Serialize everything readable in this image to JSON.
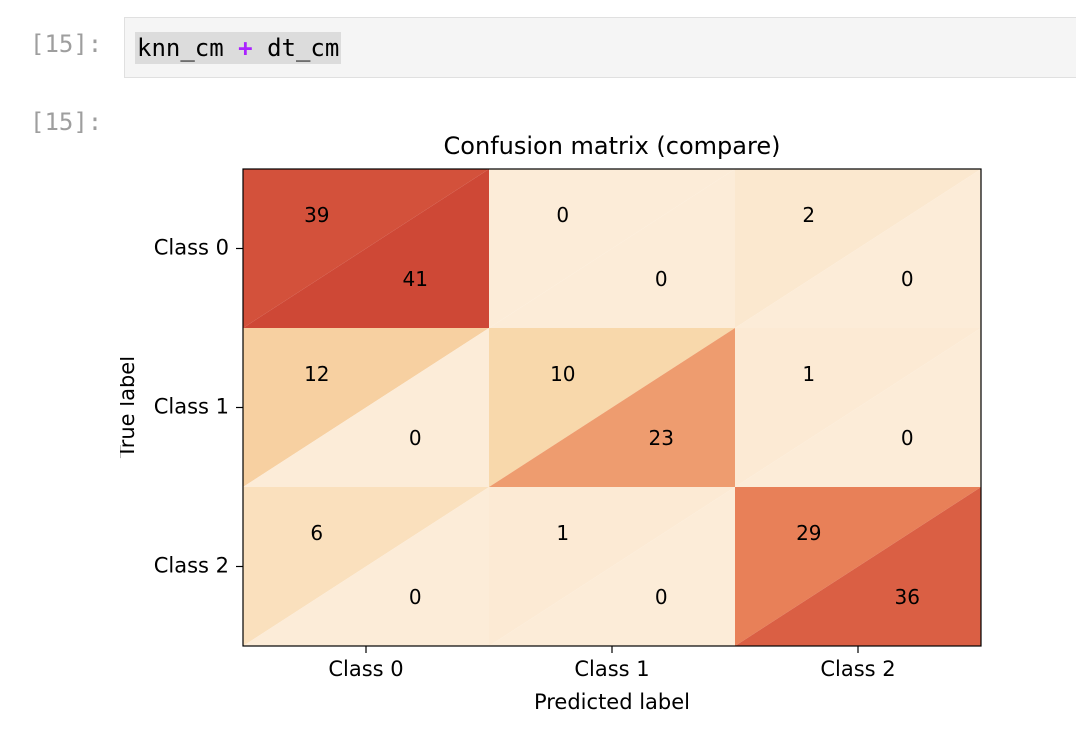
{
  "cell": {
    "in_prompt": "[15]:",
    "out_prompt": "[15]:",
    "code": {
      "lhs": "knn_cm",
      "op": "+",
      "rhs": "dt_cm"
    }
  },
  "chart_data": {
    "type": "heatmap",
    "title": "Confusion matrix (compare)",
    "xlabel": "Predicted label",
    "ylabel": "True label",
    "x_categories": [
      "Class 0",
      "Class 1",
      "Class 2"
    ],
    "y_categories": [
      "Class 0",
      "Class 1",
      "Class 2"
    ],
    "upper_values": [
      [
        39,
        0,
        2
      ],
      [
        12,
        10,
        1
      ],
      [
        6,
        1,
        29
      ]
    ],
    "lower_values": [
      [
        41,
        0,
        0
      ],
      [
        0,
        23,
        0
      ],
      [
        0,
        0,
        36
      ]
    ],
    "colormap": "OrRd",
    "value_range": [
      0,
      41
    ]
  }
}
